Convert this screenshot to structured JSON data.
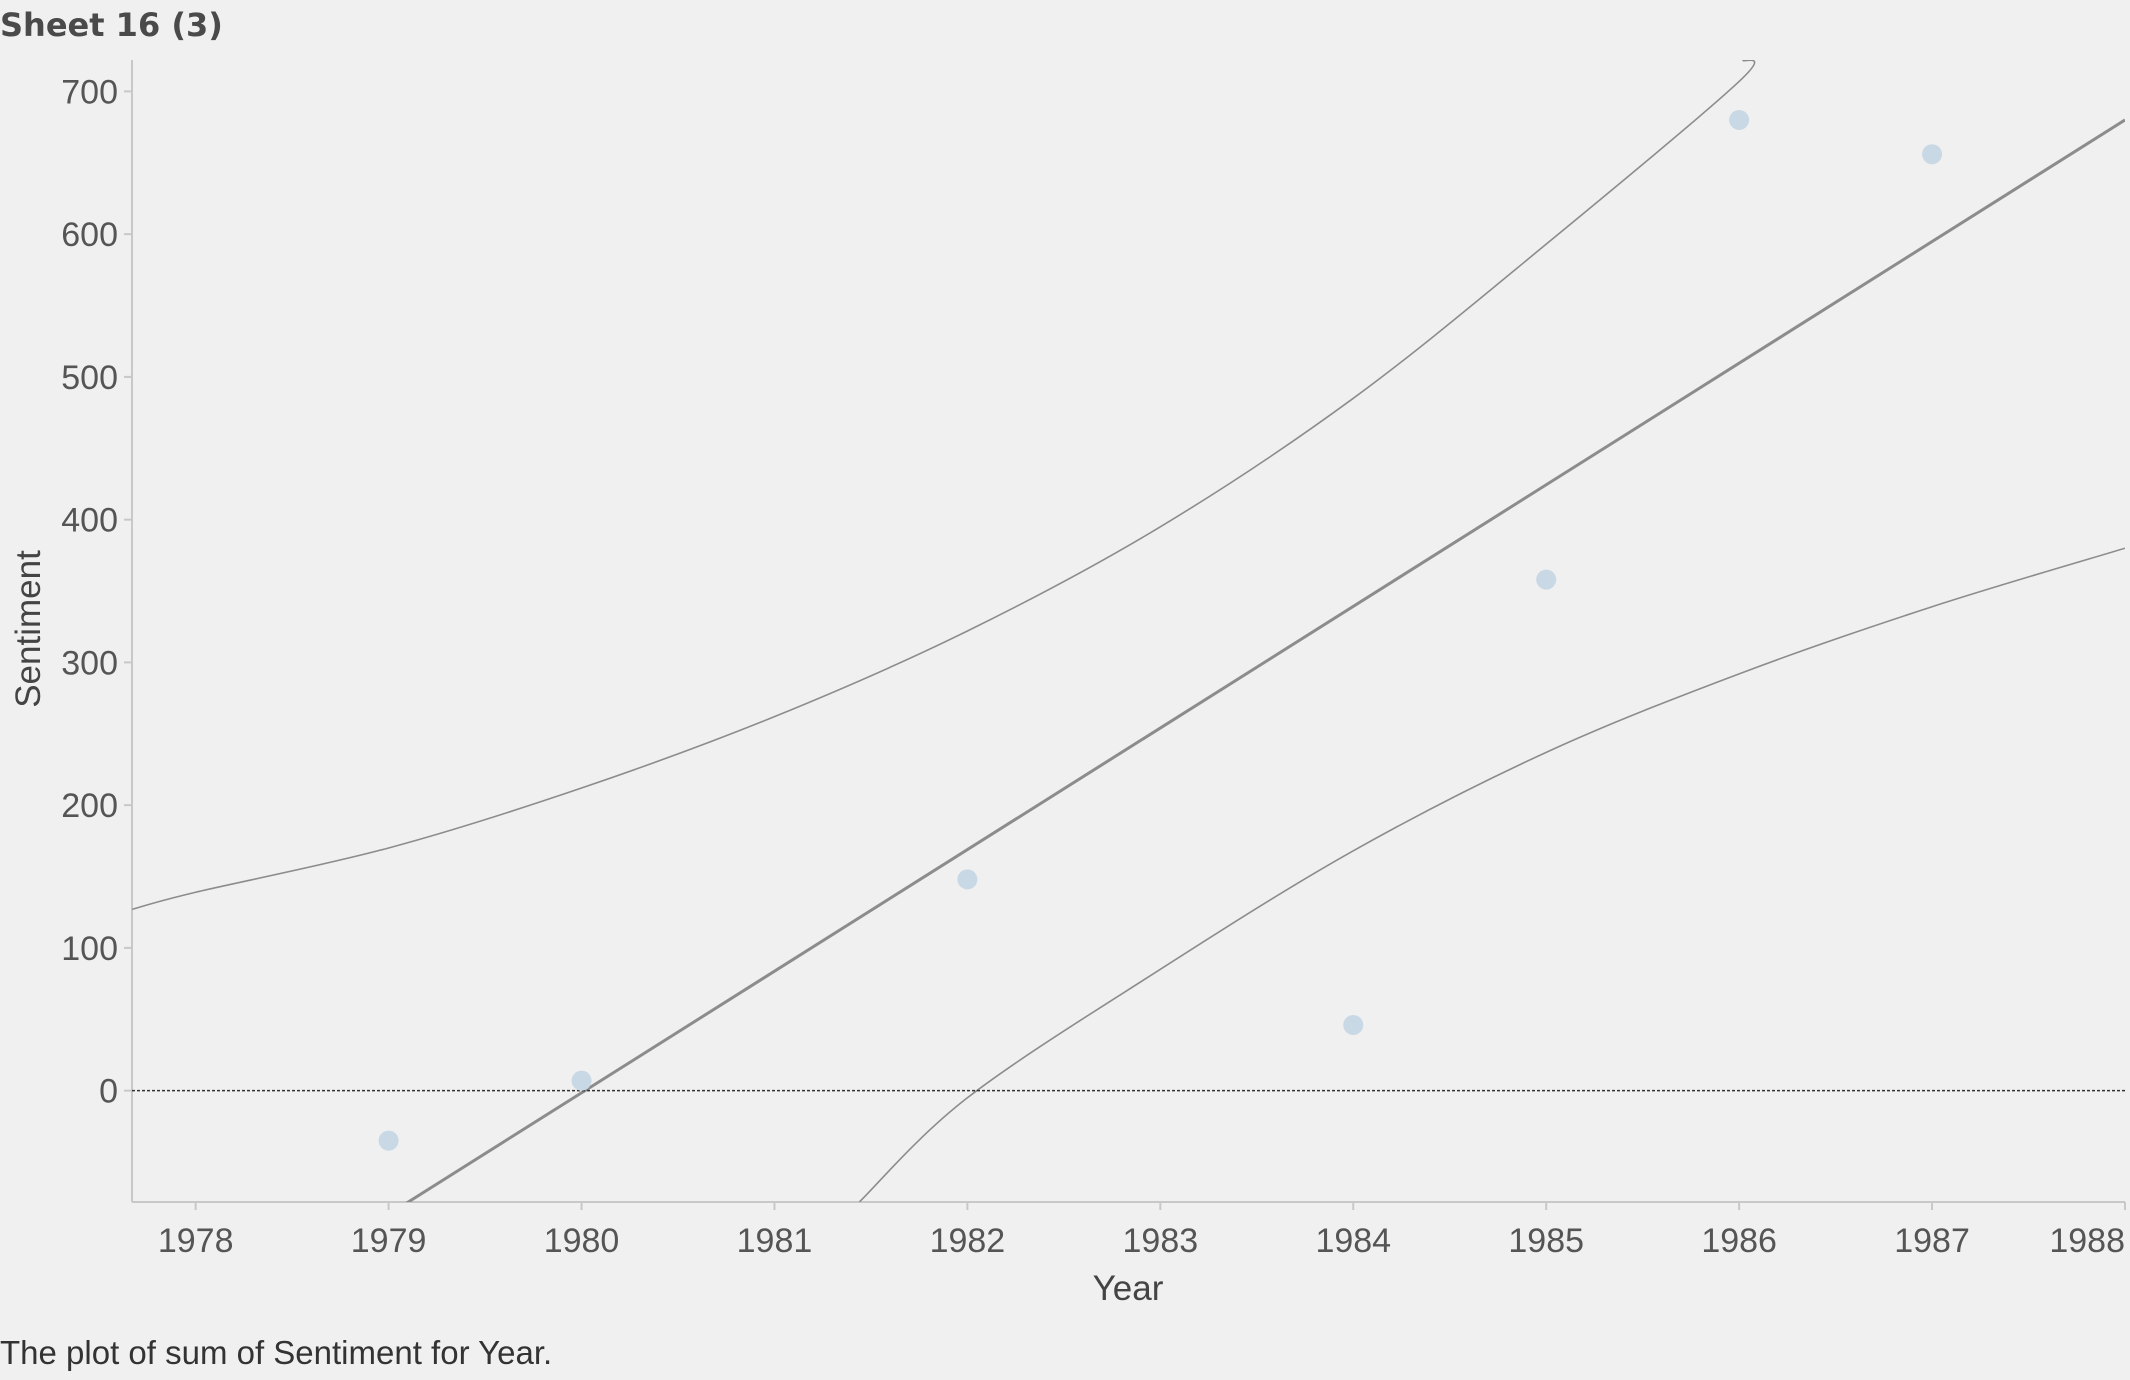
{
  "sheet": {
    "title": "Sheet 16 (3)",
    "caption": "The plot of sum of Sentiment for Year."
  },
  "colors": {
    "background": "#f0f0f0",
    "point": "#c9d8e5",
    "trend": "#8c8c8c",
    "band": "#8c8c8c",
    "zero_line": "#333333",
    "axis": "#c8c8c8",
    "tick_text": "#555555"
  },
  "chart_data": {
    "type": "scatter",
    "title": "",
    "xlabel": "Year",
    "ylabel": "Sentiment",
    "xlim": [
      1977.67,
      1988.0
    ],
    "ylim": [
      -78,
      722
    ],
    "x_ticks": [
      1978,
      1979,
      1980,
      1981,
      1982,
      1983,
      1984,
      1985,
      1986,
      1987,
      1988
    ],
    "y_ticks": [
      0,
      100,
      200,
      300,
      400,
      500,
      600,
      700
    ],
    "grid": false,
    "zero_line": true,
    "series": [
      {
        "name": "SUM(Sentiment)",
        "x": [
          1979,
          1980,
          1982,
          1984,
          1985,
          1986,
          1987
        ],
        "y": [
          -35,
          7,
          148,
          46,
          358,
          680,
          656
        ]
      }
    ],
    "trend_line": {
      "type": "linear",
      "x": [
        1977.67,
        1988.0
      ],
      "y": [
        -200,
        680
      ]
    },
    "confidence_band": {
      "upper": {
        "x": [
          1977.67,
          1978,
          1979,
          1980,
          1981,
          1982,
          1983,
          1984,
          1985,
          1986,
          1986.02
        ],
        "y": [
          127,
          139,
          170,
          212,
          262,
          322,
          395,
          485,
          593,
          707,
          722
        ]
      },
      "lower": {
        "x": [
          1981.44,
          1982,
          1983,
          1984,
          1985,
          1986,
          1987,
          1988.0
        ],
        "y": [
          -78,
          -5,
          85,
          168,
          237,
          292,
          339,
          380
        ]
      }
    }
  }
}
